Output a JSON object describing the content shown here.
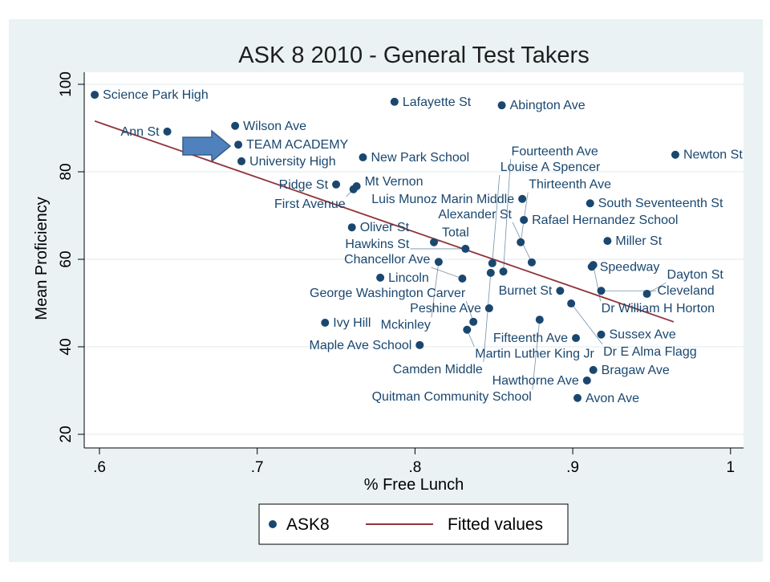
{
  "chart_data": {
    "type": "scatter",
    "title": "ASK 8 2010 - General Test Takers",
    "xlabel": "% Free Lunch",
    "ylabel": "Mean Proficiency",
    "xlim": [
      0.59,
      1.01
    ],
    "ylim": [
      18,
      103
    ],
    "xticks": [
      0.6,
      0.7,
      0.8,
      0.9,
      1.0
    ],
    "xtick_labels": [
      ".6",
      ".7",
      ".8",
      ".9",
      "1"
    ],
    "yticks": [
      20,
      40,
      60,
      80,
      100
    ],
    "ytick_labels": [
      "20",
      "40",
      "60",
      "80",
      "100"
    ],
    "grid": true,
    "legend_position": "bottom",
    "colors": {
      "points": "#1a476f",
      "fit": "#90353b",
      "background": "#eaf2f3",
      "arrow": "#4f81bd"
    },
    "series": [
      {
        "name": "ASK8",
        "points": [
          {
            "label": "Science Park High",
            "x": 0.597,
            "y": 97.6
          },
          {
            "label": "Ann St",
            "x": 0.643,
            "y": 89.2
          },
          {
            "label": "Wilson Ave",
            "x": 0.686,
            "y": 90.5
          },
          {
            "label": "TEAM ACADEMY",
            "x": 0.688,
            "y": 86.2
          },
          {
            "label": "University High",
            "x": 0.69,
            "y": 82.4
          },
          {
            "label": "Lafayette St",
            "x": 0.787,
            "y": 96.0
          },
          {
            "label": "Abington Ave",
            "x": 0.855,
            "y": 95.2
          },
          {
            "label": "New Park School",
            "x": 0.767,
            "y": 83.3
          },
          {
            "label": "Newton St",
            "x": 0.965,
            "y": 83.9
          },
          {
            "label": "Ridge St",
            "x": 0.75,
            "y": 77.1
          },
          {
            "label": "Mt Vernon",
            "x": 0.763,
            "y": 76.7
          },
          {
            "label": "First Avenue",
            "x": 0.761,
            "y": 76.0
          },
          {
            "label": "Luis Munoz Marin Middle",
            "x": 0.868,
            "y": 73.8
          },
          {
            "label": "South Seventeenth St",
            "x": 0.911,
            "y": 72.8
          },
          {
            "label": "Rafael Hernandez School",
            "x": 0.869,
            "y": 69.0
          },
          {
            "label": "Oliver St",
            "x": 0.76,
            "y": 67.3
          },
          {
            "label": "Total",
            "x": 0.812,
            "y": 63.9
          },
          {
            "label": "Hawkins St",
            "x": 0.832,
            "y": 62.4
          },
          {
            "label": "Thirteenth Ave",
            "x": 0.867,
            "y": 63.9
          },
          {
            "label": "Miller St",
            "x": 0.922,
            "y": 64.2
          },
          {
            "label": "Mckinley",
            "x": 0.815,
            "y": 59.4
          },
          {
            "label": "Louise A Spencer",
            "x": 0.849,
            "y": 59.1
          },
          {
            "label": "Alexander St",
            "x": 0.874,
            "y": 59.3
          },
          {
            "label": "Speedway",
            "x": 0.912,
            "y": 58.3
          },
          {
            "label": "Dr William H Horton",
            "x": 0.913,
            "y": 58.7
          },
          {
            "label": "Camden Middle",
            "x": 0.848,
            "y": 56.9
          },
          {
            "label": "Fourteenth Ave",
            "x": 0.856,
            "y": 57.2
          },
          {
            "label": "Lincoln",
            "x": 0.778,
            "y": 55.8
          },
          {
            "label": "Chancellor Ave",
            "x": 0.83,
            "y": 55.6
          },
          {
            "label": "Burnet St",
            "x": 0.892,
            "y": 52.8
          },
          {
            "label": "Cleveland",
            "x": 0.918,
            "y": 52.8
          },
          {
            "label": "Dayton St",
            "x": 0.947,
            "y": 52.1
          },
          {
            "label": "Dr E Alma Flagg",
            "x": 0.899,
            "y": 49.9
          },
          {
            "label": "Peshine Ave",
            "x": 0.847,
            "y": 48.8
          },
          {
            "label": "Ivy Hill",
            "x": 0.743,
            "y": 45.5
          },
          {
            "label": "Quitman Community School",
            "x": 0.879,
            "y": 46.2
          },
          {
            "label": "George Washington Carver",
            "x": 0.837,
            "y": 45.7
          },
          {
            "label": "Martin Luther King Jr",
            "x": 0.833,
            "y": 43.9
          },
          {
            "label": "Sussex Ave",
            "x": 0.918,
            "y": 42.8
          },
          {
            "label": "Fifteenth Ave",
            "x": 0.902,
            "y": 42.0
          },
          {
            "label": "Maple Ave School",
            "x": 0.803,
            "y": 40.4
          },
          {
            "label": "Bragaw Ave",
            "x": 0.913,
            "y": 34.7
          },
          {
            "label": "Hawthorne Ave",
            "x": 0.909,
            "y": 32.3
          },
          {
            "label": "Avon Ave",
            "x": 0.903,
            "y": 28.3
          }
        ]
      },
      {
        "name": "Fitted values",
        "type": "line",
        "x": [
          0.597,
          0.964
        ],
        "y": [
          91.6,
          45.7
        ]
      }
    ],
    "legend": [
      "ASK8",
      "Fitted values"
    ],
    "annotation": {
      "type": "arrow",
      "points_to": "TEAM ACADEMY"
    }
  }
}
